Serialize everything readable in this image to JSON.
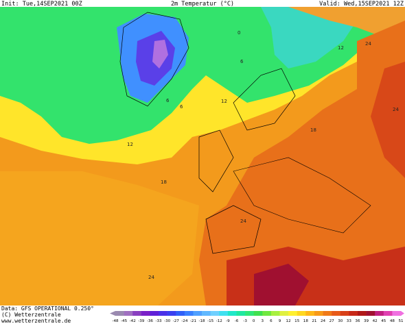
{
  "header": {
    "init": "Init: Tue,14SEP2021 00Z",
    "title": "2m Temperatur (°C)",
    "valid": "Valid: Wed,15SEP2021 12Z"
  },
  "map": {
    "labels": [
      {
        "text": "0"
      },
      {
        "text": "6"
      },
      {
        "text": "12"
      },
      {
        "text": "24"
      },
      {
        "text": "6"
      },
      {
        "text": "12"
      },
      {
        "text": "12"
      },
      {
        "text": "18"
      },
      {
        "text": "18"
      },
      {
        "text": "24"
      },
      {
        "text": "24"
      },
      {
        "text": "24"
      },
      {
        "text": "6"
      }
    ]
  },
  "colorbar": {
    "ticks": [
      -48,
      -45,
      -42,
      -39,
      -36,
      -33,
      -30,
      -27,
      -24,
      -21,
      -18,
      -15,
      -12,
      -9,
      -6,
      -3,
      0,
      3,
      6,
      9,
      12,
      15,
      18,
      21,
      24,
      27,
      30,
      33,
      36,
      39,
      42,
      45,
      48,
      51
    ],
    "colors": [
      "#9a8ab0",
      "#a070c0",
      "#8a3fc0",
      "#7a20c8",
      "#6020d8",
      "#4a30e8",
      "#3a40f0",
      "#3060f8",
      "#3a80ff",
      "#50a0ff",
      "#60b8ff",
      "#70d0ff",
      "#40e0f0",
      "#20e8c8",
      "#20e8a0",
      "#30e878",
      "#40e050",
      "#70e840",
      "#a8f040",
      "#e0f040",
      "#fff030",
      "#ffd820",
      "#ffb818",
      "#f89a18",
      "#f07a18",
      "#e85a18",
      "#d84018",
      "#c82818",
      "#b01818",
      "#a01030",
      "#c02080",
      "#e040b0",
      "#f070e0"
    ]
  },
  "footer": {
    "data": "Data: GFS OPERATIONAL 0.250°",
    "copyright": "(C) Wetterzentrale",
    "url": "www.wetterzentrale.de"
  }
}
